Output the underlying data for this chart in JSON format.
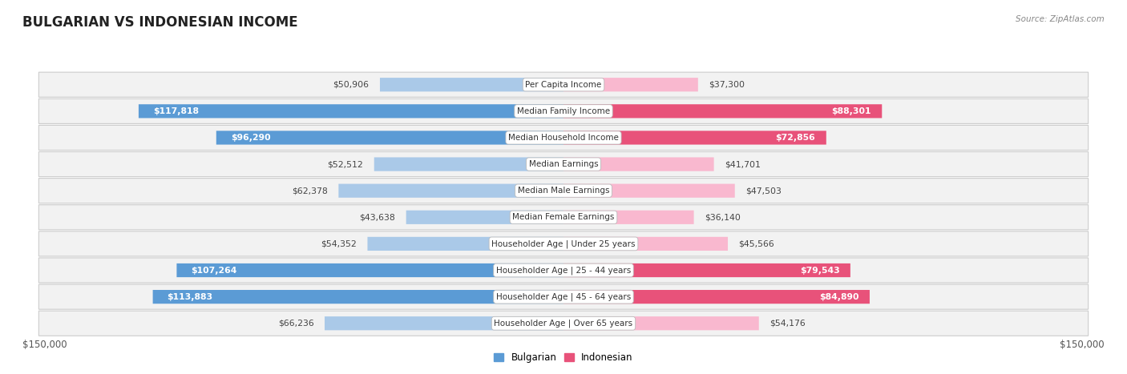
{
  "title": "BULGARIAN VS INDONESIAN INCOME",
  "source": "Source: ZipAtlas.com",
  "categories": [
    "Per Capita Income",
    "Median Family Income",
    "Median Household Income",
    "Median Earnings",
    "Median Male Earnings",
    "Median Female Earnings",
    "Householder Age | Under 25 years",
    "Householder Age | 25 - 44 years",
    "Householder Age | 45 - 64 years",
    "Householder Age | Over 65 years"
  ],
  "bulgarian_values": [
    50906,
    117818,
    96290,
    52512,
    62378,
    43638,
    54352,
    107264,
    113883,
    66236
  ],
  "indonesian_values": [
    37300,
    88301,
    72856,
    41701,
    47503,
    36140,
    45566,
    79543,
    84890,
    54176
  ],
  "bulgarian_light_color": "#aac9e8",
  "bulgarian_dark_color": "#5b9bd5",
  "indonesian_light_color": "#f9b8cf",
  "indonesian_dark_color": "#e8527a",
  "max_value": 150000,
  "x_label_left": "$150,000",
  "x_label_right": "$150,000",
  "legend_bulgarian": "Bulgarian",
  "legend_indonesian": "Indonesian",
  "bg_color": "#ffffff",
  "row_bg_color": "#f2f2f2",
  "label_fontsize": 8.0,
  "title_fontsize": 12,
  "bar_height": 0.52,
  "inside_label_threshold": 75000,
  "inside_label_threshold_ind": 60000
}
